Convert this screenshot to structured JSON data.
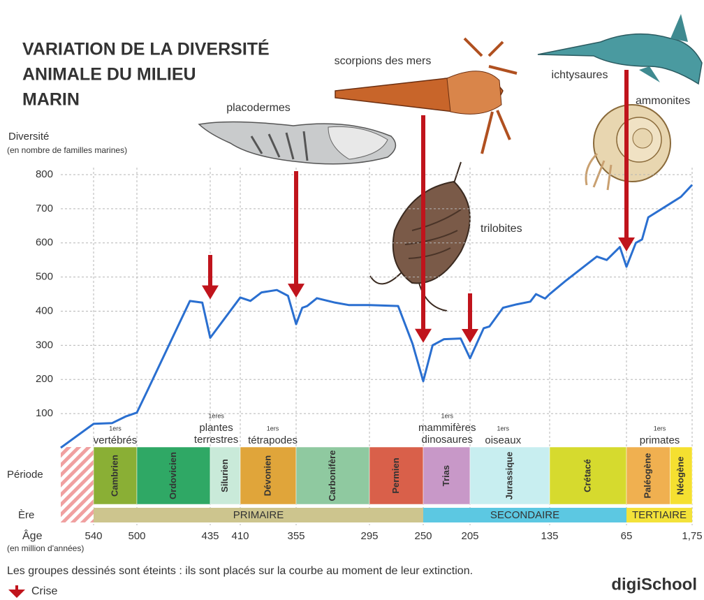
{
  "chart_data": {
    "type": "line",
    "title": [
      "VARIATION DE LA DIVERSITÉ",
      "ANIMALE DU MILIEU",
      "MARIN"
    ],
    "y_label": "Diversité",
    "y_sublabel": "(en nombre de familles marines)",
    "x_label": "Âge",
    "x_sublabel": "(en million d'années)",
    "color": "#2a6fd0",
    "x": [
      570,
      540,
      523,
      510,
      500,
      491,
      453,
      442,
      435,
      410,
      400,
      389,
      374,
      363,
      355,
      350,
      346,
      338,
      323,
      312,
      295,
      271,
      259,
      250,
      241,
      230,
      214,
      205,
      193,
      188,
      176,
      164,
      152,
      147,
      139,
      135,
      120,
      92,
      83,
      71,
      65,
      56,
      50,
      44,
      23,
      12.5,
      1.75
    ],
    "values": [
      0,
      70,
      72,
      92,
      103,
      165,
      430,
      425,
      322,
      440,
      430,
      455,
      462,
      445,
      362,
      410,
      415,
      438,
      425,
      418,
      418,
      415,
      305,
      195,
      300,
      318,
      320,
      262,
      350,
      355,
      410,
      420,
      428,
      450,
      437,
      450,
      490,
      560,
      550,
      588,
      530,
      600,
      610,
      675,
      715,
      735,
      770
    ],
    "xlim": [
      570,
      1.75
    ],
    "ylim": [
      0,
      800
    ],
    "xticks": [
      540,
      500,
      435,
      410,
      355,
      295,
      250,
      205,
      135,
      65,
      {
        "value": 1.75,
        "label": "1,75"
      }
    ],
    "yticks": [
      100,
      200,
      300,
      400,
      500,
      600,
      700,
      800
    ],
    "grid": true,
    "period_label": "Période",
    "era_label": "Ère",
    "periods": [
      {
        "name": "Cambrien",
        "start": 540,
        "end": 500,
        "color": "#8aaf35"
      },
      {
        "name": "Ordovicien",
        "start": 500,
        "end": 435,
        "color": "#2fa865"
      },
      {
        "name": "Silurien",
        "start": 435,
        "end": 410,
        "color": "#c9ead9"
      },
      {
        "name": "Dévonien",
        "start": 410,
        "end": 355,
        "color": "#e0a53a"
      },
      {
        "name": "Carbonifère",
        "start": 355,
        "end": 295,
        "color": "#8fc9a0"
      },
      {
        "name": "Permien",
        "start": 295,
        "end": 250,
        "color": "#d9604a"
      },
      {
        "name": "Trias",
        "start": 250,
        "end": 205,
        "color": "#c898c8"
      },
      {
        "name": "Jurassique",
        "start": 205,
        "end": 135,
        "color": "#c8eef0"
      },
      {
        "name": "Crétacé",
        "start": 135,
        "end": 65,
        "color": "#d6da2e"
      },
      {
        "name": "Paléogène",
        "start": 65,
        "end": 23,
        "color": "#f0b050"
      },
      {
        "name": "Néogène",
        "start": 23,
        "end": 1.75,
        "color": "#f5e030"
      }
    ],
    "eras": [
      {
        "name": "PRIMAIRE",
        "start": 540,
        "end": 250,
        "color": "#cdc58e"
      },
      {
        "name": "SECONDAIRE",
        "start": 250,
        "end": 65,
        "color": "#5cc8e2"
      },
      {
        "name": "TERTIAIRE",
        "start": 65,
        "end": 1.75,
        "color": "#f3e23a"
      }
    ],
    "events": [
      {
        "x": 520,
        "sup": "1ers",
        "lines": [
          "vertébrés"
        ]
      },
      {
        "x": 430,
        "sup": "1ères",
        "lines": [
          "plantes",
          "terrestres"
        ]
      },
      {
        "x": 378,
        "sup": "1ers",
        "lines": [
          "tétrapodes"
        ]
      },
      {
        "x": 227,
        "sup": "1ers",
        "lines": [
          "mammifères",
          "dinosaures"
        ]
      },
      {
        "x": 176,
        "sup": "1ers",
        "lines": [
          "oiseaux"
        ]
      },
      {
        "x": 33,
        "sup": "1ers",
        "lines": [
          "primates"
        ]
      }
    ],
    "crises": [
      435,
      355,
      250,
      205,
      65
    ],
    "groups": [
      "placodermes",
      "scorpions des mers",
      "ichtysaures",
      "ammonites",
      "trilobites"
    ],
    "note": "Les groupes dessinés sont éteints : ils sont placés sur la courbe au moment de leur extinction.",
    "legend": "Crise",
    "brand": "digiSchool"
  }
}
